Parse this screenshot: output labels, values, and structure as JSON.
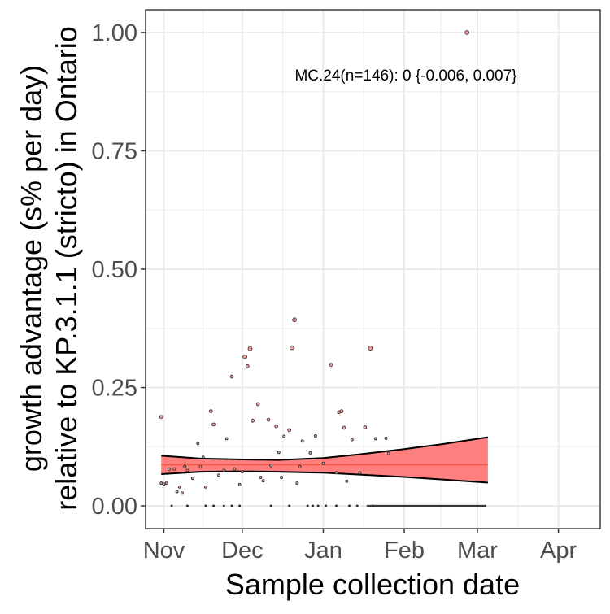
{
  "chart_data": {
    "type": "scatter",
    "title": "",
    "xlabel": "Sample collection date",
    "ylabel_lines": [
      "growth advantage (s% per day)",
      "relative to KP.3.1.1 (stricto) in Ontario"
    ],
    "annotation": "MC.24(n=146): 0 {-0.006, 0.007}",
    "x_tick_labels": [
      "Nov",
      "Dec",
      "Jan",
      "Feb",
      "Mar",
      "Apr"
    ],
    "x_ticks": [
      "2024-11-01",
      "2024-12-01",
      "2025-01-01",
      "2025-02-01",
      "2025-03-01",
      "2025-04-01"
    ],
    "xlim": [
      "2024-10-25",
      "2025-04-17"
    ],
    "y_tick_labels": [
      "0.00",
      "0.25",
      "0.50",
      "0.75",
      "1.00"
    ],
    "y_ticks": [
      0,
      0.25,
      0.5,
      0.75,
      1.0
    ],
    "ylim": [
      -0.048,
      1.048
    ],
    "grid": true,
    "colors": {
      "fit_line": "#f15a4a",
      "ribbon": "#ff7f7f",
      "ribbon_edge": "#000000",
      "point_fill": "#f4a0a0",
      "point_stroke": "#333333",
      "grid": "#ebebeb",
      "panel_border": "#333333"
    },
    "points": [
      {
        "x": "2024-10-31",
        "y": 0.048
      },
      {
        "x": "2024-10-31",
        "y": 0.188
      },
      {
        "x": "2024-11-01",
        "y": 0.046
      },
      {
        "x": "2024-11-02",
        "y": 0.048
      },
      {
        "x": "2024-11-03",
        "y": 0.077
      },
      {
        "x": "2024-11-04",
        "y": 0.0
      },
      {
        "x": "2024-11-05",
        "y": 0.078
      },
      {
        "x": "2024-11-06",
        "y": 0.03
      },
      {
        "x": "2024-11-07",
        "y": 0.04
      },
      {
        "x": "2024-11-08",
        "y": 0.027
      },
      {
        "x": "2024-11-09",
        "y": 0.083
      },
      {
        "x": "2024-11-10",
        "y": 0.075
      },
      {
        "x": "2024-11-10",
        "y": 0.0
      },
      {
        "x": "2024-11-12",
        "y": 0.058
      },
      {
        "x": "2024-11-14",
        "y": 0.132
      },
      {
        "x": "2024-11-15",
        "y": 0.082
      },
      {
        "x": "2024-11-16",
        "y": 0.103
      },
      {
        "x": "2024-11-17",
        "y": 0.04
      },
      {
        "x": "2024-11-17",
        "y": 0.0
      },
      {
        "x": "2024-11-19",
        "y": 0.2
      },
      {
        "x": "2024-11-20",
        "y": 0.172
      },
      {
        "x": "2024-11-20",
        "y": 0.0
      },
      {
        "x": "2024-11-22",
        "y": 0.065
      },
      {
        "x": "2024-11-24",
        "y": 0.075
      },
      {
        "x": "2024-11-24",
        "y": 0.0
      },
      {
        "x": "2024-11-25",
        "y": 0.142
      },
      {
        "x": "2024-11-27",
        "y": 0.273
      },
      {
        "x": "2024-11-27",
        "y": 0.0
      },
      {
        "x": "2024-11-28",
        "y": 0.078
      },
      {
        "x": "2024-11-30",
        "y": 0.045
      },
      {
        "x": "2024-11-30",
        "y": 0.0
      },
      {
        "x": "2024-12-01",
        "y": 0.072
      },
      {
        "x": "2024-12-02",
        "y": 0.315
      },
      {
        "x": "2024-12-03",
        "y": 0.295
      },
      {
        "x": "2024-12-04",
        "y": 0.332
      },
      {
        "x": "2024-12-05",
        "y": 0.18
      },
      {
        "x": "2024-12-07",
        "y": 0.215
      },
      {
        "x": "2024-12-08",
        "y": 0.06
      },
      {
        "x": "2024-12-09",
        "y": 0.053
      },
      {
        "x": "2024-12-11",
        "y": 0.182
      },
      {
        "x": "2024-12-12",
        "y": 0.085
      },
      {
        "x": "2024-12-12",
        "y": 0.0
      },
      {
        "x": "2024-12-14",
        "y": 0.168
      },
      {
        "x": "2024-12-15",
        "y": 0.113
      },
      {
        "x": "2024-12-16",
        "y": 0.06
      },
      {
        "x": "2024-12-17",
        "y": 0.147
      },
      {
        "x": "2024-12-19",
        "y": 0.16
      },
      {
        "x": "2024-12-19",
        "y": 0.0
      },
      {
        "x": "2024-12-20",
        "y": 0.334
      },
      {
        "x": "2024-12-21",
        "y": 0.393
      },
      {
        "x": "2024-12-22",
        "y": 0.048
      },
      {
        "x": "2024-12-23",
        "y": 0.083
      },
      {
        "x": "2024-12-24",
        "y": 0.137
      },
      {
        "x": "2024-12-26",
        "y": 0.0
      },
      {
        "x": "2024-12-27",
        "y": 0.112
      },
      {
        "x": "2024-12-28",
        "y": 0.0
      },
      {
        "x": "2024-12-29",
        "y": 0.148
      },
      {
        "x": "2024-12-30",
        "y": 0.0
      },
      {
        "x": "2025-01-01",
        "y": 0.09
      },
      {
        "x": "2025-01-02",
        "y": 0.0
      },
      {
        "x": "2025-01-04",
        "y": 0.298
      },
      {
        "x": "2025-01-06",
        "y": 0.07
      },
      {
        "x": "2025-01-06",
        "y": 0.0
      },
      {
        "x": "2025-01-07",
        "y": 0.198
      },
      {
        "x": "2025-01-08",
        "y": 0.2
      },
      {
        "x": "2025-01-09",
        "y": 0.165
      },
      {
        "x": "2025-01-10",
        "y": 0.052
      },
      {
        "x": "2025-01-11",
        "y": 0.0
      },
      {
        "x": "2025-01-12",
        "y": 0.14
      },
      {
        "x": "2025-01-14",
        "y": 0.0
      },
      {
        "x": "2025-01-15",
        "y": 0.07
      },
      {
        "x": "2025-01-17",
        "y": 0.166
      },
      {
        "x": "2025-01-19",
        "y": 0.333
      },
      {
        "x": "2025-01-20",
        "y": 0.0
      },
      {
        "x": "2025-01-21",
        "y": 0.142
      },
      {
        "x": "2025-01-25",
        "y": 0.143
      },
      {
        "x": "2025-01-26",
        "y": 0.111
      },
      {
        "x": "2025-02-25",
        "y": 1.0
      }
    ],
    "zero_points_range": [
      "2025-01-18",
      "2025-03-04"
    ],
    "fit": {
      "x": [
        "2024-10-31",
        "2024-11-15",
        "2024-12-01",
        "2024-12-15",
        "2025-01-01",
        "2025-01-15",
        "2025-02-01",
        "2025-02-15",
        "2025-03-05"
      ],
      "y": [
        0.087,
        0.087,
        0.087,
        0.087,
        0.087,
        0.087,
        0.087,
        0.087,
        0.087
      ],
      "lower": [
        0.067,
        0.072,
        0.073,
        0.072,
        0.07,
        0.066,
        0.061,
        0.056,
        0.049
      ],
      "upper": [
        0.106,
        0.1,
        0.098,
        0.097,
        0.101,
        0.109,
        0.12,
        0.13,
        0.145
      ]
    }
  }
}
